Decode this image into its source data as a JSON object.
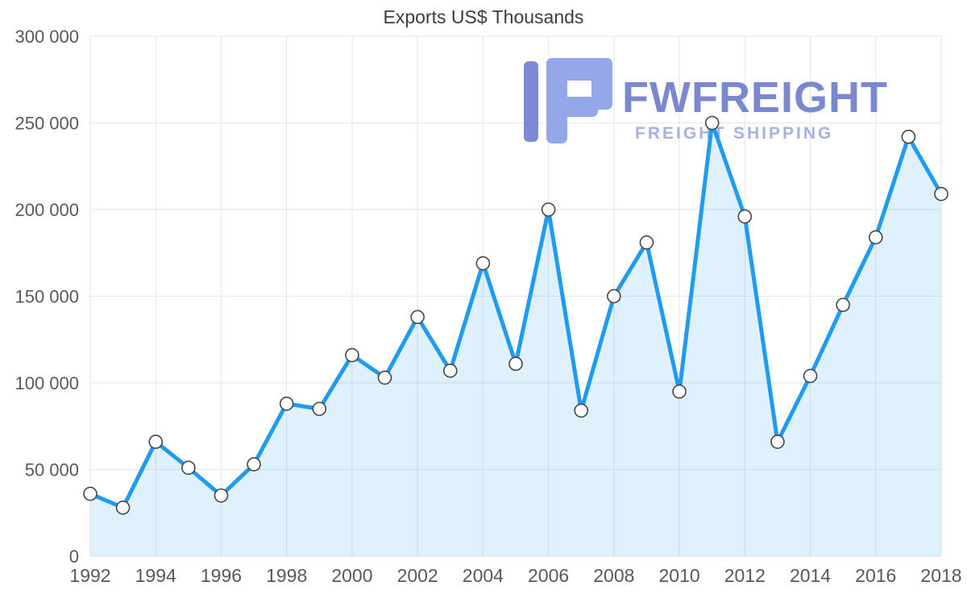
{
  "chart_data": {
    "type": "area",
    "title": "Exports US$ Thousands",
    "x": [
      1992,
      1993,
      1994,
      1995,
      1996,
      1997,
      1998,
      1999,
      2000,
      2001,
      2002,
      2003,
      2004,
      2005,
      2006,
      2007,
      2008,
      2009,
      2010,
      2011,
      2012,
      2013,
      2014,
      2015,
      2016,
      2017,
      2018
    ],
    "series": [
      {
        "name": "Exports US$ Thousands",
        "values": [
          36000,
          28000,
          66000,
          51000,
          35000,
          53000,
          88000,
          85000,
          116000,
          103000,
          138000,
          107000,
          169000,
          111000,
          200000,
          84000,
          150000,
          181000,
          95000,
          250000,
          196000,
          66000,
          104000,
          145000,
          184000,
          242000,
          209000
        ]
      }
    ],
    "ylim": [
      0,
      300000
    ],
    "ytick_step": 50000,
    "xtick_step": 2,
    "grid": true,
    "legend": "none",
    "colors": {
      "line": "#1f9bf2",
      "area": "rgba(31,155,242,0.14)",
      "marker_fill": "#ffffff",
      "marker_stroke": "#454545",
      "grid": "#e6e6e6",
      "axis_text": "#595959",
      "title_text": "#3d3d3d"
    }
  },
  "watermark": {
    "brand": "FWFREIGHT",
    "tagline": "FREIGHT SHIPPING",
    "colors": {
      "glyph_light": "#8ca0e8",
      "glyph_dark": "#7181d1",
      "brand_text": "#6f7ecc",
      "tagline_text": "#9fabdc"
    }
  }
}
